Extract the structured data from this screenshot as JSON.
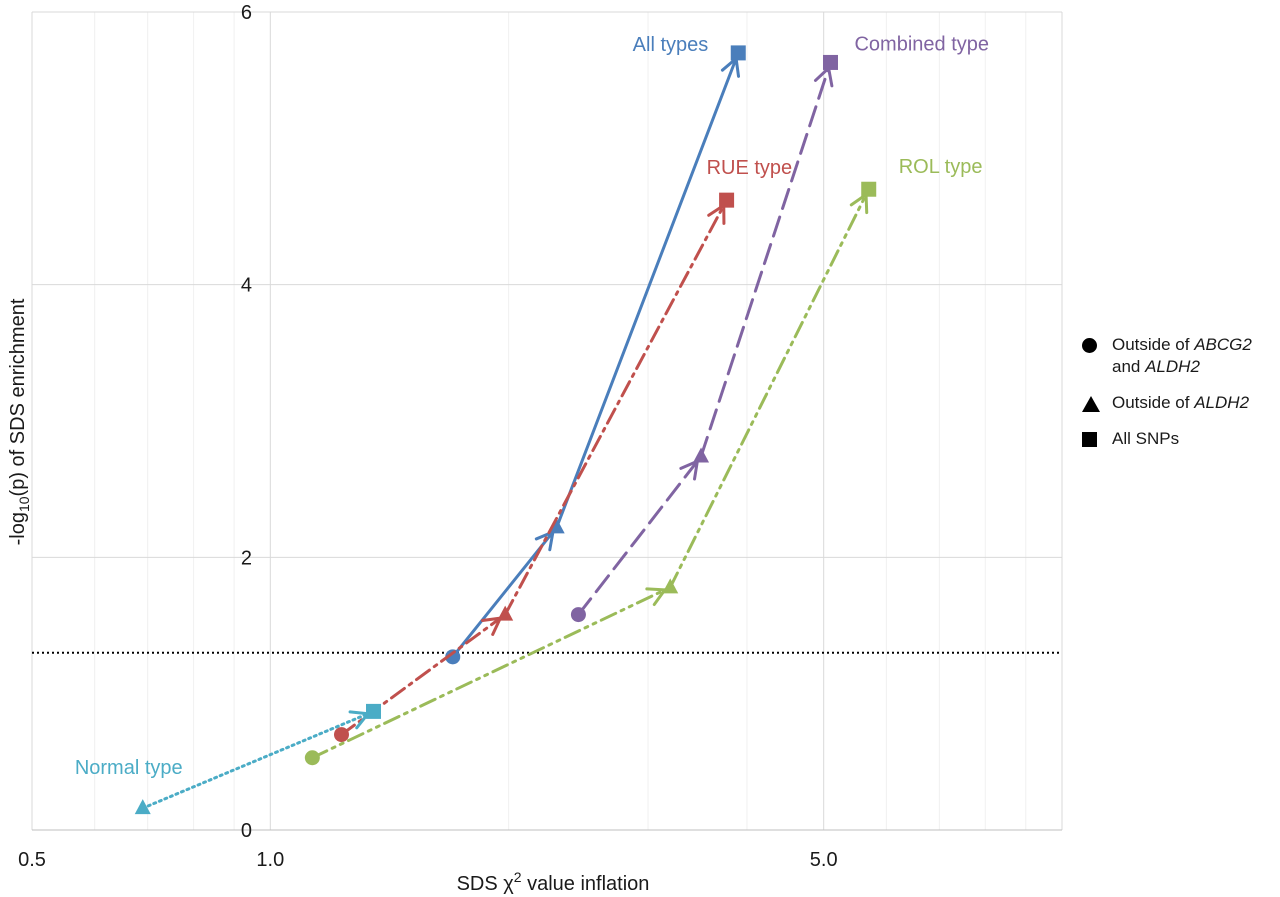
{
  "chart_data": {
    "type": "line",
    "xlabel": "SDS χ² value inflation",
    "ylabel": "-log10(p) of SDS enrichment",
    "x_scale": "log",
    "xlim": [
      0.5,
      10
    ],
    "ylim": [
      0,
      6
    ],
    "x_ticks": [
      0.5,
      1.0,
      5.0
    ],
    "x_tick_labels": [
      "0.5",
      "1.0",
      "5.0"
    ],
    "y_ticks": [
      0,
      2,
      4,
      6
    ],
    "y_tick_labels": [
      "0",
      "2",
      "4",
      "6"
    ],
    "reference_line_y": 1.3,
    "grid": true,
    "legend_position": "right",
    "series": [
      {
        "name": "All types",
        "color": "#4a7ebb",
        "dash": "solid",
        "points": [
          {
            "x": 1.7,
            "y": 1.27,
            "marker": "circle"
          },
          {
            "x": 2.3,
            "y": 2.22,
            "marker": "triangle"
          },
          {
            "x": 3.9,
            "y": 5.7,
            "marker": "square"
          }
        ]
      },
      {
        "name": "RUE type",
        "color": "#c0504d",
        "dash": "dash-dot",
        "points": [
          {
            "x": 1.23,
            "y": 0.7,
            "marker": "circle"
          },
          {
            "x": 1.98,
            "y": 1.58,
            "marker": "triangle"
          },
          {
            "x": 3.77,
            "y": 4.62,
            "marker": "square"
          }
        ]
      },
      {
        "name": "Combined type",
        "color": "#8064a2",
        "dash": "long-dash",
        "points": [
          {
            "x": 2.45,
            "y": 1.58,
            "marker": "circle"
          },
          {
            "x": 3.5,
            "y": 2.74,
            "marker": "triangle"
          },
          {
            "x": 5.1,
            "y": 5.63,
            "marker": "square"
          }
        ]
      },
      {
        "name": "ROL type",
        "color": "#9bbb59",
        "dash": "dash-dot-dot",
        "points": [
          {
            "x": 1.13,
            "y": 0.53,
            "marker": "circle"
          },
          {
            "x": 3.2,
            "y": 1.78,
            "marker": "triangle"
          },
          {
            "x": 5.7,
            "y": 4.7,
            "marker": "square"
          }
        ]
      },
      {
        "name": "Normal type",
        "color": "#4bacc6",
        "dash": "dotted",
        "points": [
          {
            "x": 0.69,
            "y": 0.16,
            "marker": "triangle"
          },
          {
            "x": 1.35,
            "y": 0.87,
            "marker": "square"
          }
        ]
      }
    ]
  },
  "legend": {
    "circle_label_pre": "Outside of ",
    "circle_gene_1": "ABCG2",
    "circle_label_and": "and ",
    "circle_gene_2": "ALDH2",
    "triangle_label_pre": "Outside of ",
    "triangle_gene": "ALDH2",
    "square_label": "All SNPs"
  }
}
